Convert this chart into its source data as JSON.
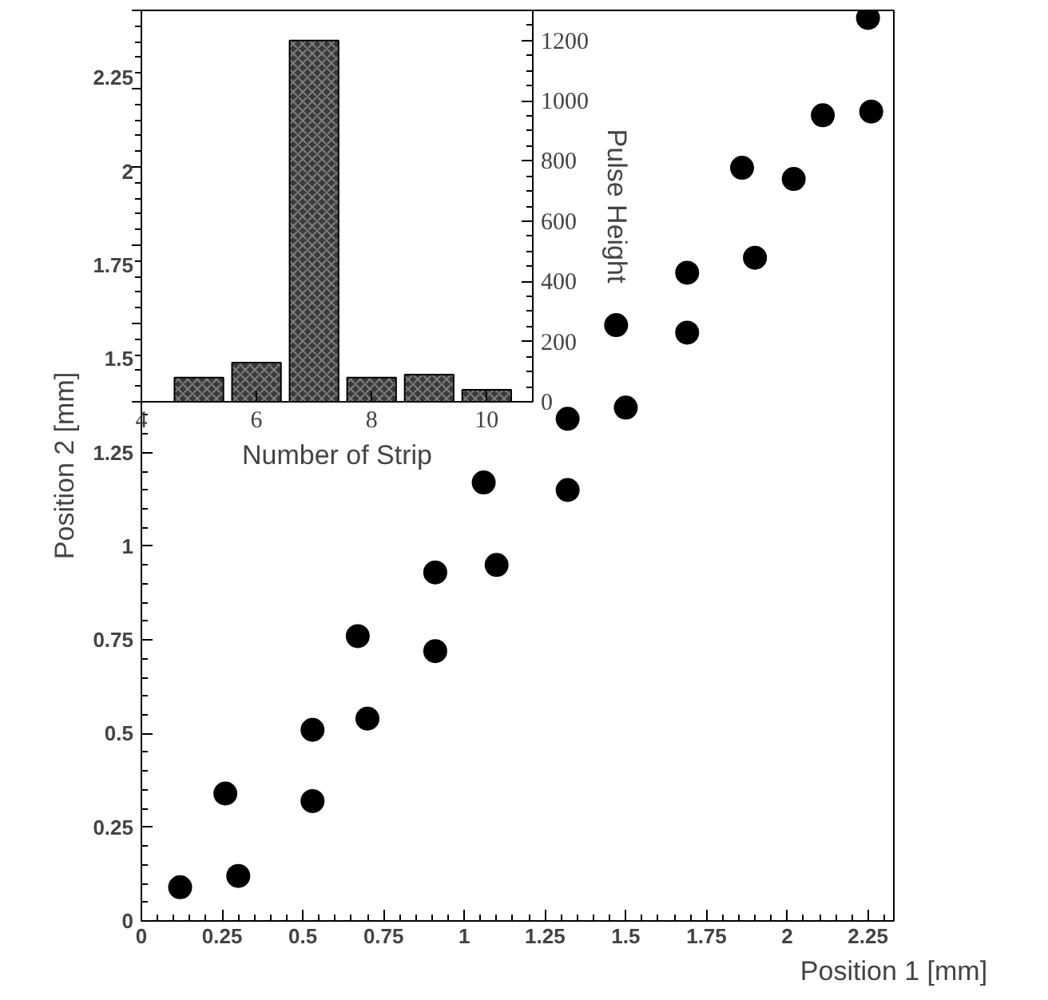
{
  "chart_data": [
    {
      "type": "scatter",
      "xlabel": "Position 1 [mm]",
      "ylabel": "Position 2 [mm]",
      "marker": "circle",
      "color": "#000000",
      "grid": false,
      "x": [
        0.12,
        0.3,
        0.26,
        0.53,
        0.53,
        0.7,
        0.67,
        0.91,
        0.91,
        1.1,
        1.06,
        1.32,
        1.32,
        1.5,
        1.47,
        1.69,
        1.69,
        1.9,
        1.86,
        2.02,
        2.11,
        2.26,
        2.25
      ],
      "values": [
        0.09,
        0.12,
        0.34,
        0.32,
        0.51,
        0.54,
        0.76,
        0.72,
        0.93,
        0.95,
        1.17,
        1.34,
        1.15,
        1.37,
        1.59,
        1.57,
        1.73,
        1.77,
        2.01,
        1.98,
        2.15,
        2.16,
        2.41
      ],
      "xlim": [
        0,
        2.33
      ],
      "ylim": [
        0,
        2.43
      ],
      "xticks": [
        0,
        0.25,
        0.5,
        0.75,
        1,
        1.25,
        1.5,
        1.75,
        2,
        2.25
      ],
      "yticks": [
        0,
        0.25,
        0.5,
        0.75,
        1,
        1.25,
        1.5,
        1.75,
        2,
        2.25
      ]
    },
    {
      "type": "bar",
      "xlabel": "Number of Strip",
      "y2label": "Pulse Height",
      "grid": false,
      "x": [
        5,
        6,
        7,
        8,
        9,
        10
      ],
      "series": [
        {
          "color": "#3a3a3a",
          "axis": "y2",
          "values": [
            80,
            130,
            1200,
            80,
            90,
            40
          ]
        }
      ],
      "xlim": [
        4,
        10.8
      ],
      "xticks": [
        4,
        6,
        8,
        10
      ],
      "y2lim": [
        0,
        1300
      ],
      "y2ticks": [
        0,
        200,
        400,
        600,
        800,
        1000,
        1200
      ]
    }
  ]
}
